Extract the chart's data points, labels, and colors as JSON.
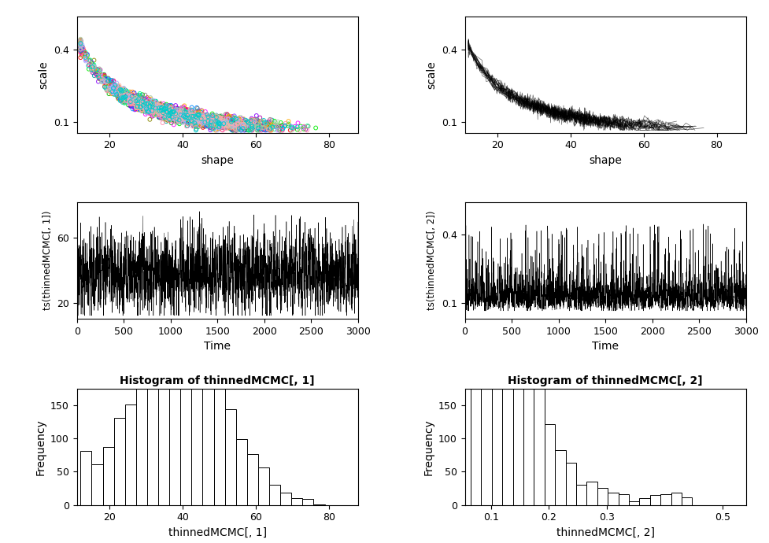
{
  "scatter_xlim": [
    11,
    88
  ],
  "scatter_ylim": [
    0.055,
    0.54
  ],
  "scatter_xticks": [
    20,
    40,
    60,
    80
  ],
  "scatter_yticks": [
    0.1,
    0.4
  ],
  "scatter_xlabel": "shape",
  "scatter_ylabel": "scale",
  "scatter_n_chains": 20,
  "line_xlim": [
    11,
    88
  ],
  "line_ylim": [
    0.055,
    0.54
  ],
  "line_xticks": [
    20,
    40,
    60,
    80
  ],
  "line_yticks": [
    0.1,
    0.4
  ],
  "line_xlabel": "shape",
  "line_ylabel": "scale",
  "ts1_xlim": [
    0,
    3000
  ],
  "ts1_ylim": [
    10,
    82
  ],
  "ts1_xticks": [
    0,
    500,
    1000,
    1500,
    2000,
    2500,
    3000
  ],
  "ts1_yticks": [
    20,
    60
  ],
  "ts1_xlabel": "Time",
  "ts1_ylabel": "ts(thinnedMCMC[, 1])",
  "ts2_xlim": [
    0,
    3000
  ],
  "ts2_ylim": [
    0.03,
    0.54
  ],
  "ts2_xticks": [
    0,
    500,
    1000,
    1500,
    2000,
    2500,
    3000
  ],
  "ts2_yticks": [
    0.1,
    0.4
  ],
  "ts2_xlabel": "Time",
  "ts2_ylabel": "ts(thinnedMCMC[, 2])",
  "hist1_title": "Histogram of thinnedMCMC[, 1]",
  "hist1_xlabel": "thinnedMCMC[, 1]",
  "hist1_ylabel": "Frequency",
  "hist1_xlim": [
    11,
    88
  ],
  "hist1_ylim": [
    0,
    175
  ],
  "hist1_xticks": [
    20,
    40,
    60,
    80
  ],
  "hist1_yticks": [
    0,
    50,
    100,
    150
  ],
  "hist2_title": "Histogram of thinnedMCMC[, 2]",
  "hist2_xlabel": "thinnedMCMC[, 2]",
  "hist2_ylabel": "Frequency",
  "hist2_xlim": [
    0.055,
    0.54
  ],
  "hist2_ylim": [
    0,
    175
  ],
  "hist2_xticks": [
    0.1,
    0.2,
    0.3,
    0.5
  ],
  "hist2_yticks": [
    0,
    50,
    100,
    150
  ],
  "n_mcmc": 3000,
  "background_color": "#ffffff",
  "chain_colors": [
    "#FF0000",
    "#00BB00",
    "#0000FF",
    "#FF8800",
    "#AA00AA",
    "#00AAAA",
    "#888800",
    "#FF00FF",
    "#00EE00",
    "#8800FF",
    "#FF0088",
    "#0088FF",
    "#888888",
    "#FFAA00",
    "#00FF88",
    "#FF88AA",
    "#AACCAA",
    "#AAAAFF",
    "#FFAAAA",
    "#00CCCC"
  ]
}
